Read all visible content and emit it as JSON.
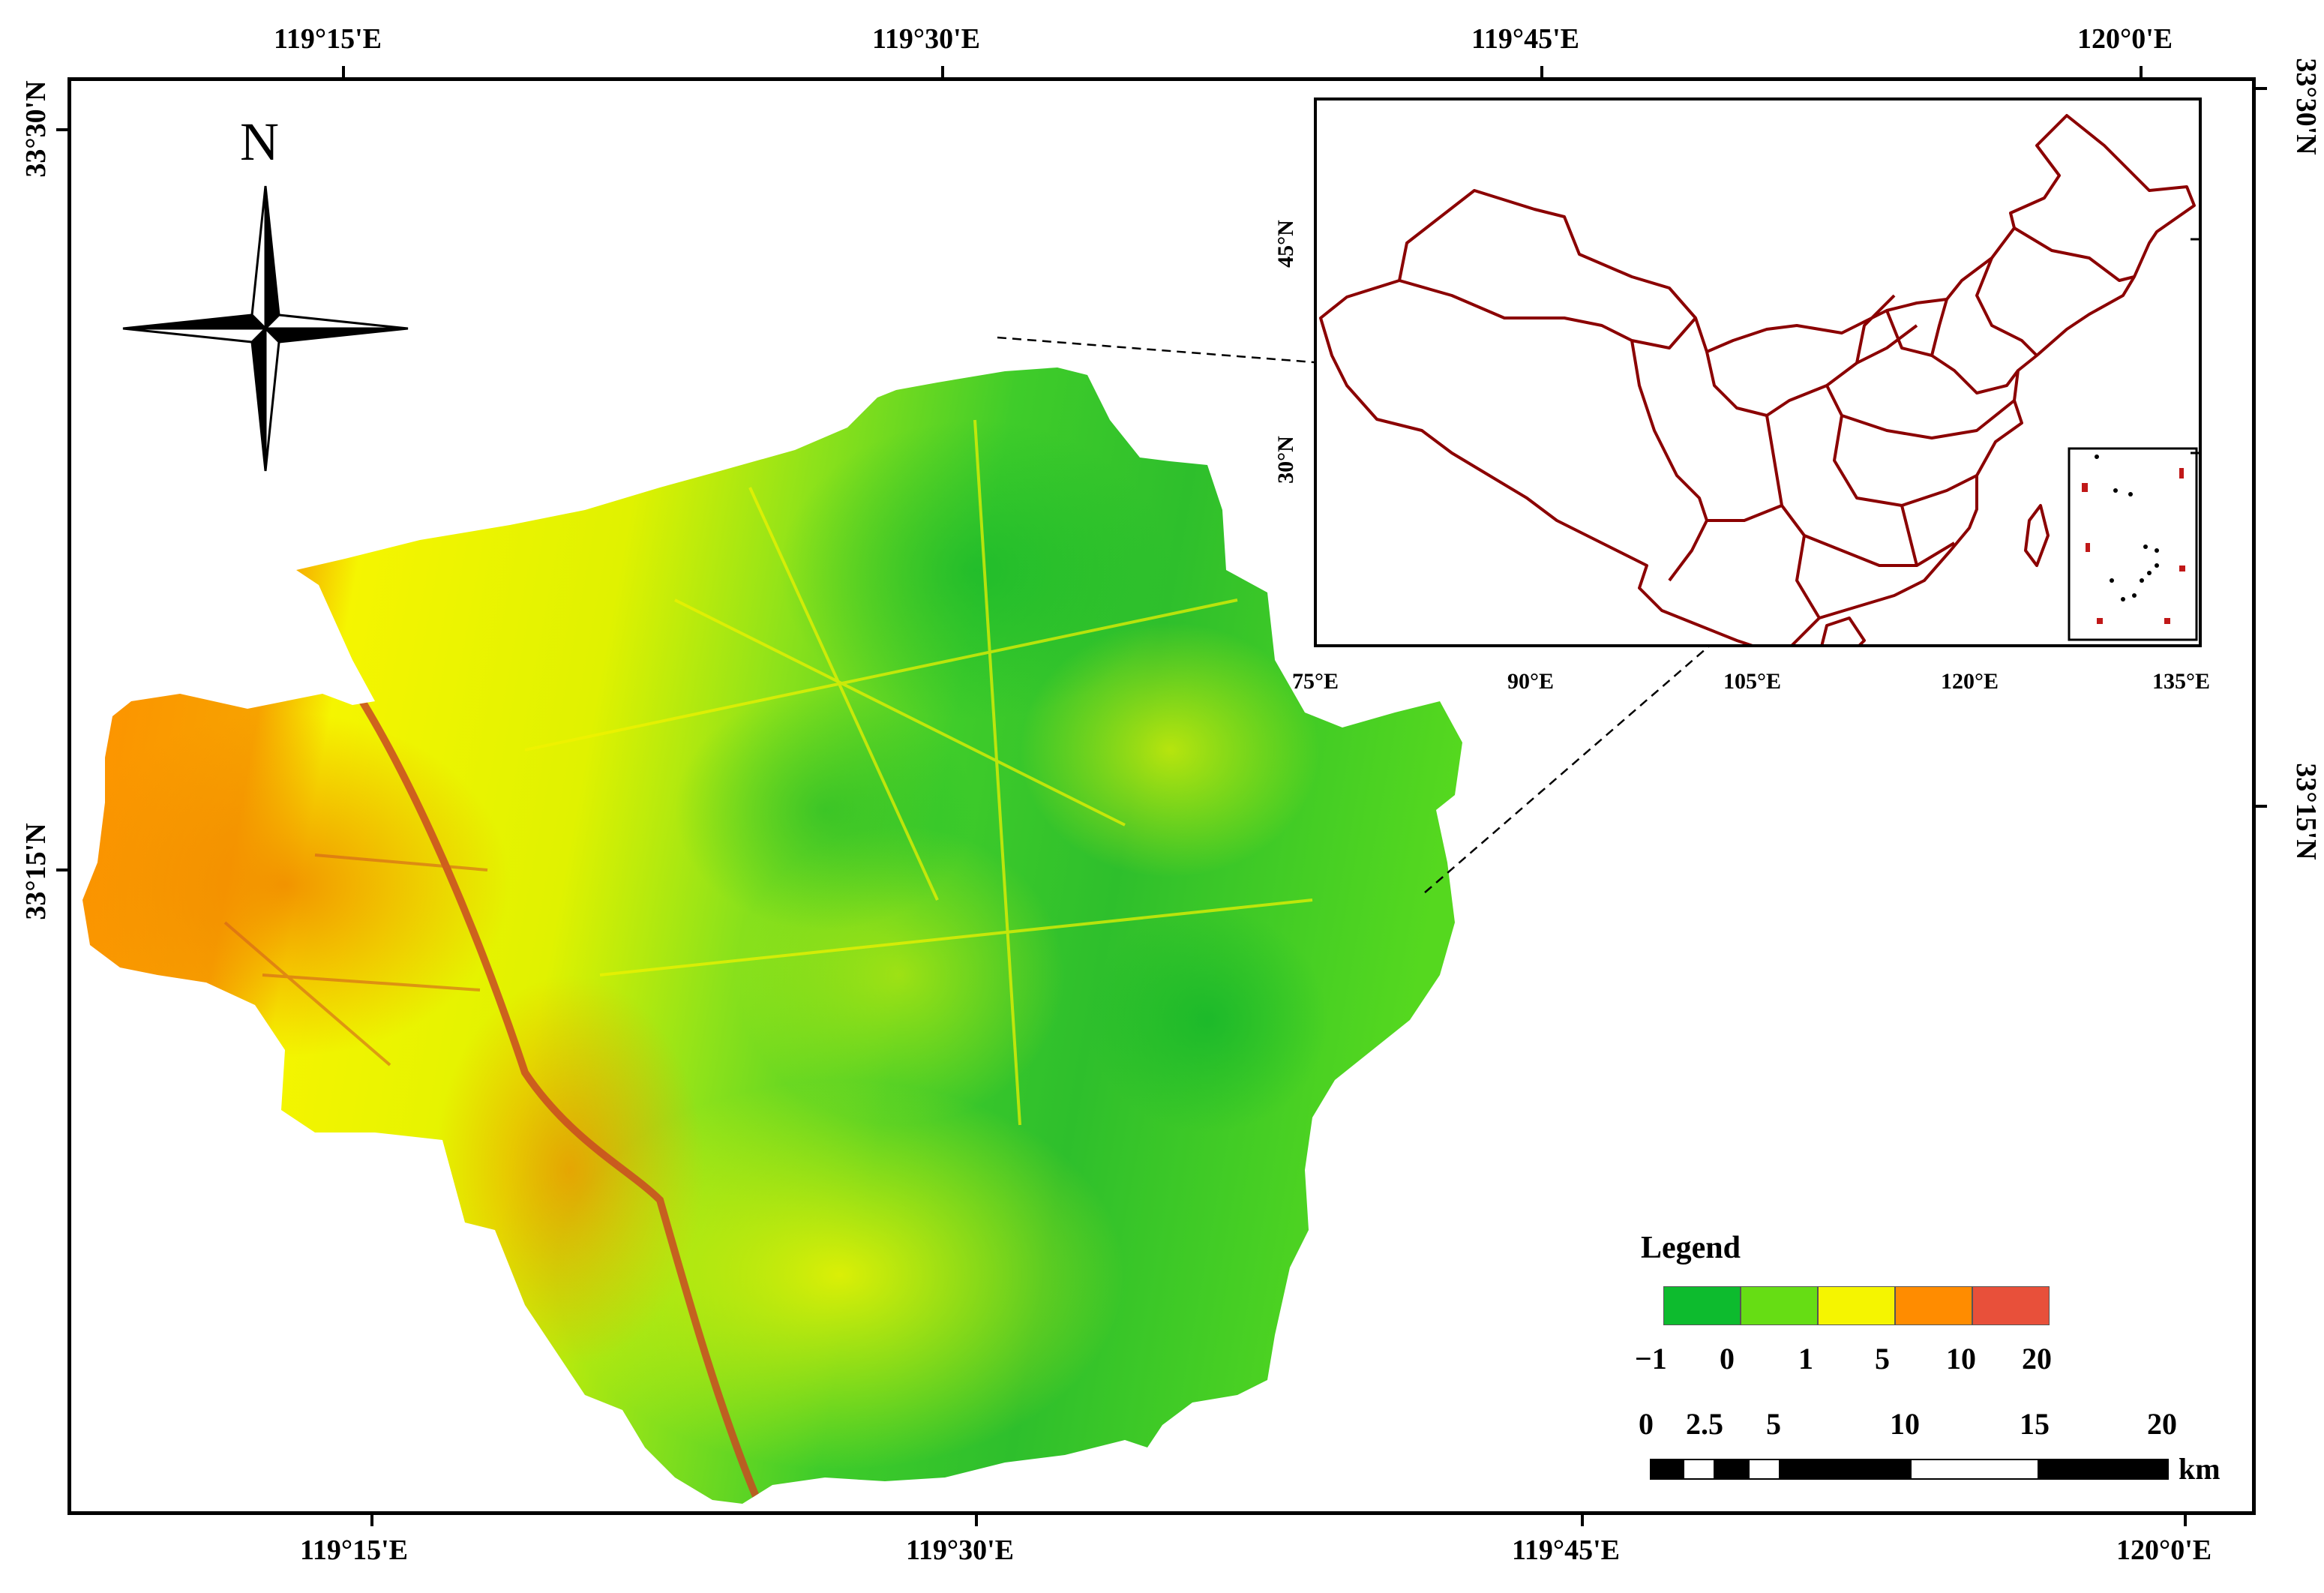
{
  "axes": {
    "top_labels": [
      "119°15'E",
      "119°30'E",
      "119°45'E",
      "120°0'E"
    ],
    "bottom_labels": [
      "119°15'E",
      "119°30'E",
      "119°45'E",
      "120°0'E"
    ],
    "left_labels": [
      "33°30'N",
      "33°15'N"
    ],
    "right_labels": [
      "33°30'N",
      "33°15'N"
    ]
  },
  "north_arrow": {
    "letter": "N",
    "icon": "compass-rose-icon"
  },
  "inset": {
    "x_labels": [
      "75°E",
      "90°E",
      "105°E",
      "120°E",
      "135°E"
    ],
    "y_labels": [
      "45°N",
      "30°N"
    ]
  },
  "legend": {
    "title": "Legend",
    "breaks": [
      "−1",
      "0",
      "1",
      "5",
      "10",
      "20"
    ],
    "colors": [
      "#0dbb2e",
      "#66dd14",
      "#f5f500",
      "#ff8c00",
      "#e8503a"
    ]
  },
  "scale_bar": {
    "labels": [
      "0",
      "2.5",
      "5",
      "10",
      "15",
      "20"
    ],
    "unit": "km"
  },
  "colors": {
    "boundary": "#8b0000",
    "leader_line": "#000000"
  }
}
